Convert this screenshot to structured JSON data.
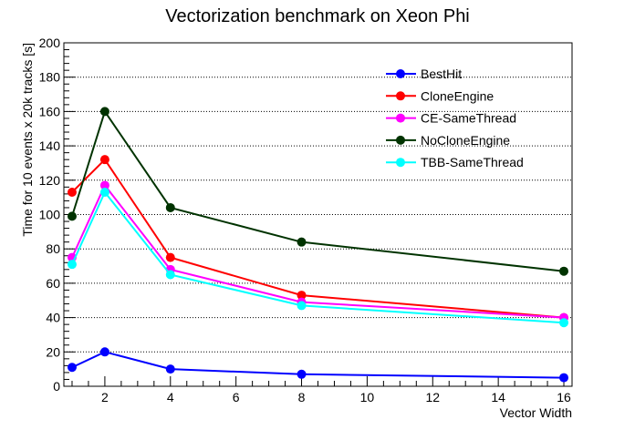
{
  "chart_data": {
    "type": "line",
    "title": "Vectorization benchmark on Xeon Phi",
    "xlabel": "Vector Width",
    "ylabel": "Time for 10 events x 20k tracks [s]",
    "xlim": [
      0.75,
      16.25
    ],
    "ylim": [
      0,
      200
    ],
    "xticks": [
      2,
      4,
      6,
      8,
      10,
      12,
      14,
      16
    ],
    "yticks": [
      0,
      20,
      40,
      60,
      80,
      100,
      120,
      140,
      160,
      180,
      200
    ],
    "grid": "horizontal dotted",
    "legend_position": "top-right",
    "x": [
      1,
      2,
      4,
      8,
      16
    ],
    "series": [
      {
        "name": "BestHit",
        "color": "#0000ff",
        "values": [
          11,
          20,
          10,
          7,
          5
        ]
      },
      {
        "name": "CloneEngine",
        "color": "#ff0000",
        "values": [
          113,
          132,
          75,
          53,
          40
        ]
      },
      {
        "name": "CE-SameThread",
        "color": "#ff00ff",
        "values": [
          75,
          117,
          68,
          49,
          40
        ]
      },
      {
        "name": "NoCloneEngine",
        "color": "#003300",
        "values": [
          99,
          160,
          104,
          84,
          67
        ]
      },
      {
        "name": "TBB-SameThread",
        "color": "#00ffff",
        "values": [
          71,
          113,
          65,
          47,
          37
        ]
      }
    ]
  }
}
